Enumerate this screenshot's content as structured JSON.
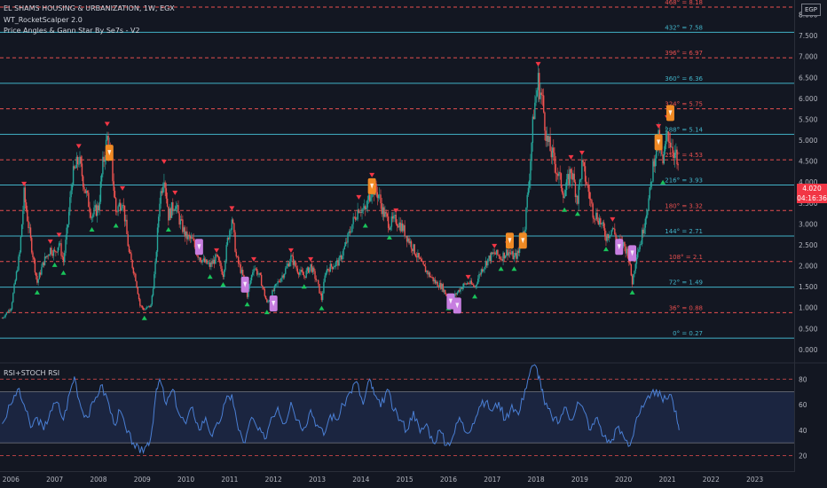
{
  "header": {
    "symbol_title": "EL SHAMS HOUSING & URBANIZATION, 1W, EGX",
    "indicator_1": "WT_RocketScalper 2.0",
    "indicator_2": "Price Angles & Gann Star By Se7s - V2",
    "currency": "EGP"
  },
  "price_badge": {
    "value": "4.020",
    "countdown": "04:16:36"
  },
  "colors": {
    "background": "#131722",
    "gann_cyan": "#42b3c8",
    "gann_red": "#e84f4f",
    "candle_up": "#26a69a",
    "candle_down": "#ef5350",
    "rsi_line": "#4a7fd4",
    "rsi_band": "#1b2540",
    "signal_orange": "#f08a24",
    "signal_violet": "#c77ee0",
    "buy_triangle": "#19c35a",
    "sell_triangle": "#f23645"
  },
  "chart_data": [
    {
      "type": "candlestick",
      "x_axis_labels": [
        "2006",
        "2007",
        "2008",
        "2009",
        "2010",
        "2011",
        "2012",
        "2013",
        "2014",
        "2015",
        "2016",
        "2017",
        "2018",
        "2019",
        "2020",
        "2021",
        "2022",
        "2023"
      ],
      "x_range": [
        2005.75,
        2023.9
      ],
      "y_ticks": [
        "0.000",
        "0.500",
        "1.000",
        "1.500",
        "2.000",
        "2.500",
        "3.000",
        "3.500",
        "4.000",
        "4.500",
        "5.000",
        "5.500",
        "6.000",
        "6.500",
        "7.000",
        "7.500",
        "8.000",
        "8"
      ],
      "y_range": [
        -0.3,
        8.35
      ],
      "close_path": [
        [
          2005.8,
          0.75
        ],
        [
          2006.0,
          1.0
        ],
        [
          2006.2,
          2.3
        ],
        [
          2006.3,
          3.7
        ],
        [
          2006.45,
          2.6
        ],
        [
          2006.6,
          1.6
        ],
        [
          2006.75,
          2.1
        ],
        [
          2006.9,
          2.4
        ],
        [
          2007.0,
          2.3
        ],
        [
          2007.1,
          2.55
        ],
        [
          2007.2,
          2.1
        ],
        [
          2007.3,
          3.0
        ],
        [
          2007.4,
          4.1
        ],
        [
          2007.55,
          4.55
        ],
        [
          2007.7,
          3.8
        ],
        [
          2007.85,
          3.2
        ],
        [
          2008.0,
          3.4
        ],
        [
          2008.1,
          4.4
        ],
        [
          2008.2,
          5.05
        ],
        [
          2008.3,
          4.4
        ],
        [
          2008.4,
          3.3
        ],
        [
          2008.55,
          3.6
        ],
        [
          2008.7,
          2.3
        ],
        [
          2008.85,
          1.7
        ],
        [
          2008.95,
          1.05
        ],
        [
          2009.05,
          0.95
        ],
        [
          2009.2,
          1.05
        ],
        [
          2009.3,
          2.0
        ],
        [
          2009.4,
          3.6
        ],
        [
          2009.5,
          4.2
        ],
        [
          2009.6,
          3.2
        ],
        [
          2009.75,
          3.5
        ],
        [
          2009.85,
          3.1
        ],
        [
          2010.0,
          2.7
        ],
        [
          2010.15,
          2.6
        ],
        [
          2010.25,
          2.3
        ],
        [
          2010.4,
          2.1
        ],
        [
          2010.55,
          2.0
        ],
        [
          2010.7,
          2.2
        ],
        [
          2010.85,
          1.8
        ],
        [
          2010.95,
          2.6
        ],
        [
          2011.05,
          3.15
        ],
        [
          2011.15,
          2.2
        ],
        [
          2011.3,
          1.75
        ],
        [
          2011.4,
          1.3
        ],
        [
          2011.55,
          2.0
        ],
        [
          2011.7,
          1.7
        ],
        [
          2011.85,
          1.1
        ],
        [
          2011.95,
          1.3
        ],
        [
          2012.1,
          1.6
        ],
        [
          2012.25,
          1.85
        ],
        [
          2012.4,
          2.2
        ],
        [
          2012.55,
          1.9
        ],
        [
          2012.7,
          1.75
        ],
        [
          2012.85,
          2.0
        ],
        [
          2013.0,
          1.6
        ],
        [
          2013.1,
          1.2
        ],
        [
          2013.2,
          1.9
        ],
        [
          2013.35,
          2.0
        ],
        [
          2013.5,
          2.1
        ],
        [
          2013.65,
          2.5
        ],
        [
          2013.8,
          3.0
        ],
        [
          2013.95,
          3.4
        ],
        [
          2014.1,
          3.3
        ],
        [
          2014.25,
          3.9
        ],
        [
          2014.4,
          3.7
        ],
        [
          2014.5,
          3.3
        ],
        [
          2014.65,
          3.0
        ],
        [
          2014.8,
          3.1
        ],
        [
          2014.95,
          2.9
        ],
        [
          2015.1,
          2.6
        ],
        [
          2015.25,
          2.3
        ],
        [
          2015.4,
          2.0
        ],
        [
          2015.55,
          1.8
        ],
        [
          2015.7,
          1.6
        ],
        [
          2015.85,
          1.5
        ],
        [
          2016.0,
          1.2
        ],
        [
          2016.15,
          1.3
        ],
        [
          2016.3,
          1.5
        ],
        [
          2016.45,
          1.6
        ],
        [
          2016.6,
          1.5
        ],
        [
          2016.75,
          1.9
        ],
        [
          2016.9,
          2.15
        ],
        [
          2017.05,
          2.3
        ],
        [
          2017.2,
          2.2
        ],
        [
          2017.35,
          2.35
        ],
        [
          2017.5,
          2.2
        ],
        [
          2017.6,
          2.3
        ],
        [
          2017.75,
          3.0
        ],
        [
          2017.85,
          4.2
        ],
        [
          2017.95,
          5.7
        ],
        [
          2018.05,
          6.4
        ],
        [
          2018.15,
          5.9
        ],
        [
          2018.25,
          5.0
        ],
        [
          2018.35,
          4.7
        ],
        [
          2018.5,
          4.2
        ],
        [
          2018.65,
          3.7
        ],
        [
          2018.8,
          4.3
        ],
        [
          2018.95,
          3.6
        ],
        [
          2019.05,
          4.4
        ],
        [
          2019.15,
          4.0
        ],
        [
          2019.3,
          3.3
        ],
        [
          2019.45,
          3.1
        ],
        [
          2019.6,
          2.7
        ],
        [
          2019.75,
          2.9
        ],
        [
          2019.85,
          2.6
        ],
        [
          2020.0,
          2.5
        ],
        [
          2020.1,
          2.3
        ],
        [
          2020.2,
          1.6
        ],
        [
          2020.3,
          2.3
        ],
        [
          2020.4,
          2.6
        ],
        [
          2020.5,
          3.2
        ],
        [
          2020.6,
          3.7
        ],
        [
          2020.7,
          4.6
        ],
        [
          2020.8,
          5.0
        ],
        [
          2020.9,
          4.4
        ],
        [
          2021.0,
          5.2
        ],
        [
          2021.1,
          4.9
        ],
        [
          2021.2,
          4.6
        ],
        [
          2021.27,
          4.02
        ]
      ],
      "gann_levels": [
        {
          "label": "0° = 0.27",
          "value": 0.27,
          "style": "cyan"
        },
        {
          "label": "36° = 0.88",
          "value": 0.88,
          "style": "red"
        },
        {
          "label": "72° = 1.49",
          "value": 1.49,
          "style": "cyan"
        },
        {
          "label": "108° = 2.1",
          "value": 2.1,
          "style": "red"
        },
        {
          "label": "144° = 2.71",
          "value": 2.71,
          "style": "cyan"
        },
        {
          "label": "180° = 3.32",
          "value": 3.32,
          "style": "red"
        },
        {
          "label": "216° = 3.93",
          "value": 3.93,
          "style": "cyan"
        },
        {
          "label": "252° = 4.53",
          "value": 4.53,
          "style": "red"
        },
        {
          "label": "288° = 5.14",
          "value": 5.14,
          "style": "cyan"
        },
        {
          "label": "324° = 5.75",
          "value": 5.75,
          "style": "red"
        },
        {
          "label": "360° = 6.36",
          "value": 6.36,
          "style": "cyan"
        },
        {
          "label": "396° = 6.97",
          "value": 6.97,
          "style": "red"
        },
        {
          "label": "432° = 7.58",
          "value": 7.58,
          "style": "cyan"
        },
        {
          "label": "468° = 8.18",
          "value": 8.18,
          "style": "red"
        }
      ],
      "signal_badges": [
        {
          "x": 2008.25,
          "y": 4.7,
          "color": "orange"
        },
        {
          "x": 2010.3,
          "y": 2.45,
          "color": "violet"
        },
        {
          "x": 2011.35,
          "y": 1.55,
          "color": "violet"
        },
        {
          "x": 2012.0,
          "y": 1.1,
          "color": "violet"
        },
        {
          "x": 2014.25,
          "y": 3.9,
          "color": "orange"
        },
        {
          "x": 2016.05,
          "y": 1.15,
          "color": "violet"
        },
        {
          "x": 2016.2,
          "y": 1.05,
          "color": "violet"
        },
        {
          "x": 2017.4,
          "y": 2.6,
          "color": "orange"
        },
        {
          "x": 2017.7,
          "y": 2.6,
          "color": "orange"
        },
        {
          "x": 2019.9,
          "y": 2.45,
          "color": "violet"
        },
        {
          "x": 2020.2,
          "y": 2.3,
          "color": "violet"
        },
        {
          "x": 2020.8,
          "y": 4.95,
          "color": "orange"
        },
        {
          "x": 2021.07,
          "y": 5.65,
          "color": "orange"
        }
      ]
    },
    {
      "type": "line",
      "title": "RSI+STOCH RSI",
      "y_ticks": [
        "20",
        "40",
        "60",
        "80"
      ],
      "y_range": [
        12,
        92
      ],
      "band": [
        30,
        70
      ],
      "x_range": [
        2005.75,
        2023.9
      ],
      "series": [
        {
          "points": [
            [
              2005.8,
              45
            ],
            [
              2006.0,
              60
            ],
            [
              2006.15,
              72
            ],
            [
              2006.3,
              60
            ],
            [
              2006.45,
              42
            ],
            [
              2006.6,
              50
            ],
            [
              2006.75,
              40
            ],
            [
              2006.9,
              55
            ],
            [
              2007.05,
              62
            ],
            [
              2007.2,
              48
            ],
            [
              2007.35,
              70
            ],
            [
              2007.45,
              82
            ],
            [
              2007.6,
              58
            ],
            [
              2007.75,
              50
            ],
            [
              2007.9,
              62
            ],
            [
              2008.05,
              75
            ],
            [
              2008.2,
              65
            ],
            [
              2008.35,
              45
            ],
            [
              2008.5,
              55
            ],
            [
              2008.65,
              38
            ],
            [
              2008.8,
              30
            ],
            [
              2008.95,
              22
            ],
            [
              2009.1,
              28
            ],
            [
              2009.2,
              35
            ],
            [
              2009.3,
              65
            ],
            [
              2009.4,
              80
            ],
            [
              2009.55,
              60
            ],
            [
              2009.7,
              72
            ],
            [
              2009.85,
              52
            ],
            [
              2010.0,
              45
            ],
            [
              2010.15,
              58
            ],
            [
              2010.3,
              40
            ],
            [
              2010.45,
              50
            ],
            [
              2010.6,
              35
            ],
            [
              2010.75,
              45
            ],
            [
              2010.9,
              62
            ],
            [
              2011.05,
              68
            ],
            [
              2011.2,
              40
            ],
            [
              2011.35,
              30
            ],
            [
              2011.5,
              50
            ],
            [
              2011.65,
              40
            ],
            [
              2011.8,
              33
            ],
            [
              2011.95,
              50
            ],
            [
              2012.1,
              58
            ],
            [
              2012.25,
              45
            ],
            [
              2012.4,
              62
            ],
            [
              2012.55,
              48
            ],
            [
              2012.7,
              42
            ],
            [
              2012.85,
              56
            ],
            [
              2013.0,
              44
            ],
            [
              2013.15,
              36
            ],
            [
              2013.3,
              52
            ],
            [
              2013.45,
              48
            ],
            [
              2013.6,
              60
            ],
            [
              2013.75,
              70
            ],
            [
              2013.9,
              78
            ],
            [
              2014.05,
              60
            ],
            [
              2014.2,
              80
            ],
            [
              2014.3,
              68
            ],
            [
              2014.45,
              58
            ],
            [
              2014.6,
              72
            ],
            [
              2014.75,
              55
            ],
            [
              2014.9,
              48
            ],
            [
              2015.05,
              40
            ],
            [
              2015.2,
              55
            ],
            [
              2015.35,
              38
            ],
            [
              2015.5,
              45
            ],
            [
              2015.65,
              30
            ],
            [
              2015.8,
              40
            ],
            [
              2015.95,
              28
            ],
            [
              2016.1,
              35
            ],
            [
              2016.25,
              50
            ],
            [
              2016.4,
              38
            ],
            [
              2016.55,
              45
            ],
            [
              2016.7,
              58
            ],
            [
              2016.85,
              62
            ],
            [
              2017.0,
              55
            ],
            [
              2017.15,
              62
            ],
            [
              2017.3,
              48
            ],
            [
              2017.45,
              60
            ],
            [
              2017.6,
              52
            ],
            [
              2017.75,
              72
            ],
            [
              2017.88,
              88
            ],
            [
              2018.0,
              90
            ],
            [
              2018.1,
              78
            ],
            [
              2018.2,
              60
            ],
            [
              2018.35,
              52
            ],
            [
              2018.5,
              45
            ],
            [
              2018.65,
              58
            ],
            [
              2018.8,
              48
            ],
            [
              2018.95,
              62
            ],
            [
              2019.1,
              55
            ],
            [
              2019.25,
              40
            ],
            [
              2019.4,
              50
            ],
            [
              2019.55,
              35
            ],
            [
              2019.7,
              30
            ],
            [
              2019.85,
              42
            ],
            [
              2020.0,
              35
            ],
            [
              2020.15,
              28
            ],
            [
              2020.3,
              50
            ],
            [
              2020.45,
              58
            ],
            [
              2020.6,
              65
            ],
            [
              2020.75,
              72
            ],
            [
              2020.9,
              62
            ],
            [
              2021.05,
              68
            ],
            [
              2021.2,
              55
            ],
            [
              2021.27,
              40
            ]
          ]
        }
      ]
    }
  ]
}
